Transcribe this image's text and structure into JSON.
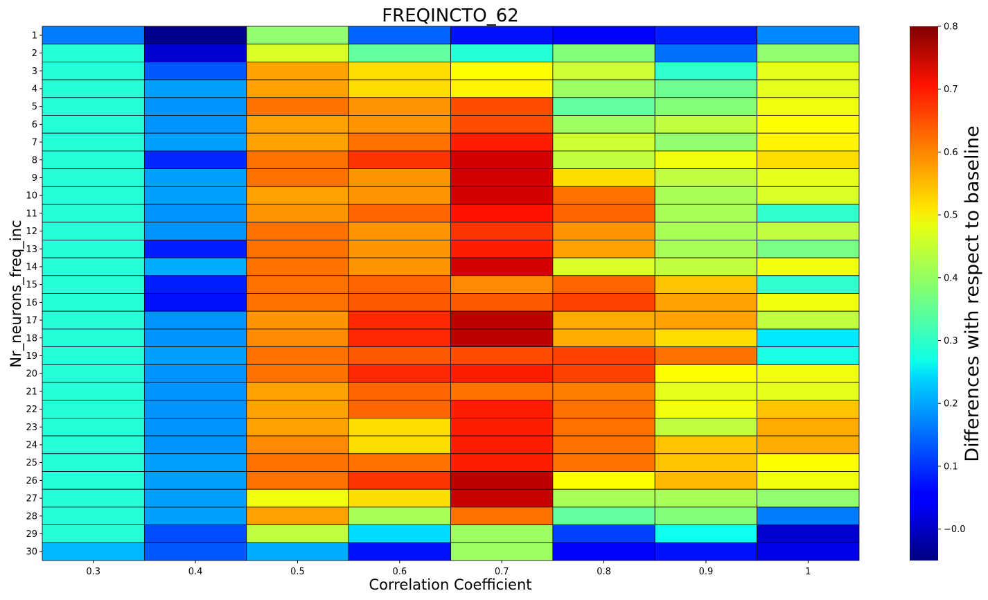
{
  "chart_data": {
    "type": "heatmap",
    "title": "FREQINCTO_62",
    "xlabel": "Correlation Coefficient",
    "ylabel": "Nr_neurons_freq_inc",
    "colorbar_label": "Differences with respect to baseline",
    "colormap": "jet",
    "vmin": -0.05,
    "vmax": 0.8,
    "colorbar_ticks": [
      -0.0,
      0.1,
      0.2,
      0.3,
      0.4,
      0.5,
      0.6,
      0.7,
      0.8
    ],
    "colorbar_tick_labels": [
      "−0.0",
      "0.1",
      "0.2",
      "0.3",
      "0.4",
      "0.5",
      "0.6",
      "0.7",
      "0.8"
    ],
    "x_categories": [
      "0.3",
      "0.4",
      "0.5",
      "0.6",
      "0.7",
      "0.8",
      "0.9",
      "1"
    ],
    "y_categories": [
      "1",
      "2",
      "3",
      "4",
      "5",
      "6",
      "7",
      "8",
      "9",
      "10",
      "11",
      "12",
      "13",
      "14",
      "15",
      "16",
      "17",
      "18",
      "19",
      "20",
      "21",
      "22",
      "23",
      "24",
      "25",
      "26",
      "27",
      "28",
      "29",
      "30"
    ],
    "grid": true,
    "values": [
      [
        0.16,
        -0.04,
        0.39,
        0.14,
        0.07,
        0.06,
        0.08,
        0.17
      ],
      [
        0.3,
        0.02,
        0.45,
        0.35,
        0.3,
        0.38,
        0.15,
        0.39
      ],
      [
        0.3,
        0.13,
        0.56,
        0.51,
        0.48,
        0.44,
        0.31,
        0.46
      ],
      [
        0.3,
        0.19,
        0.56,
        0.51,
        0.49,
        0.4,
        0.36,
        0.46
      ],
      [
        0.3,
        0.18,
        0.6,
        0.57,
        0.63,
        0.35,
        0.38,
        0.47
      ],
      [
        0.3,
        0.18,
        0.56,
        0.57,
        0.63,
        0.4,
        0.43,
        0.48
      ],
      [
        0.3,
        0.19,
        0.56,
        0.6,
        0.67,
        0.44,
        0.39,
        0.49
      ],
      [
        0.3,
        0.09,
        0.6,
        0.65,
        0.73,
        0.43,
        0.47,
        0.51
      ],
      [
        0.3,
        0.19,
        0.6,
        0.57,
        0.73,
        0.51,
        0.43,
        0.46
      ],
      [
        0.3,
        0.19,
        0.56,
        0.57,
        0.73,
        0.6,
        0.41,
        0.45
      ],
      [
        0.3,
        0.18,
        0.57,
        0.61,
        0.68,
        0.61,
        0.41,
        0.31
      ],
      [
        0.3,
        0.18,
        0.6,
        0.57,
        0.65,
        0.57,
        0.41,
        0.43
      ],
      [
        0.3,
        0.08,
        0.6,
        0.57,
        0.67,
        0.56,
        0.41,
        0.37
      ],
      [
        0.3,
        0.2,
        0.6,
        0.57,
        0.73,
        0.45,
        0.43,
        0.47
      ],
      [
        0.3,
        0.08,
        0.6,
        0.61,
        0.58,
        0.61,
        0.53,
        0.31
      ],
      [
        0.3,
        0.07,
        0.6,
        0.62,
        0.62,
        0.64,
        0.56,
        0.47
      ],
      [
        0.3,
        0.18,
        0.57,
        0.66,
        0.75,
        0.55,
        0.56,
        0.43
      ],
      [
        0.3,
        0.18,
        0.58,
        0.66,
        0.75,
        0.55,
        0.51,
        0.25
      ],
      [
        0.3,
        0.19,
        0.6,
        0.62,
        0.63,
        0.64,
        0.6,
        0.29
      ],
      [
        0.3,
        0.18,
        0.6,
        0.66,
        0.67,
        0.64,
        0.48,
        0.47
      ],
      [
        0.3,
        0.18,
        0.56,
        0.61,
        0.6,
        0.59,
        0.46,
        0.46
      ],
      [
        0.3,
        0.18,
        0.56,
        0.61,
        0.67,
        0.6,
        0.47,
        0.53
      ],
      [
        0.3,
        0.18,
        0.56,
        0.51,
        0.67,
        0.6,
        0.43,
        0.55
      ],
      [
        0.3,
        0.18,
        0.58,
        0.51,
        0.67,
        0.6,
        0.53,
        0.55
      ],
      [
        0.3,
        0.19,
        0.6,
        0.6,
        0.67,
        0.6,
        0.53,
        0.48
      ],
      [
        0.3,
        0.19,
        0.6,
        0.65,
        0.75,
        0.48,
        0.54,
        0.47
      ],
      [
        0.3,
        0.19,
        0.47,
        0.51,
        0.74,
        0.41,
        0.41,
        0.39
      ],
      [
        0.3,
        0.19,
        0.56,
        0.41,
        0.6,
        0.35,
        0.38,
        0.16
      ],
      [
        0.3,
        0.12,
        0.43,
        0.24,
        0.4,
        0.11,
        0.28,
        0.02
      ],
      [
        0.21,
        0.13,
        0.2,
        0.07,
        0.4,
        0.06,
        0.07,
        0.04
      ]
    ]
  }
}
